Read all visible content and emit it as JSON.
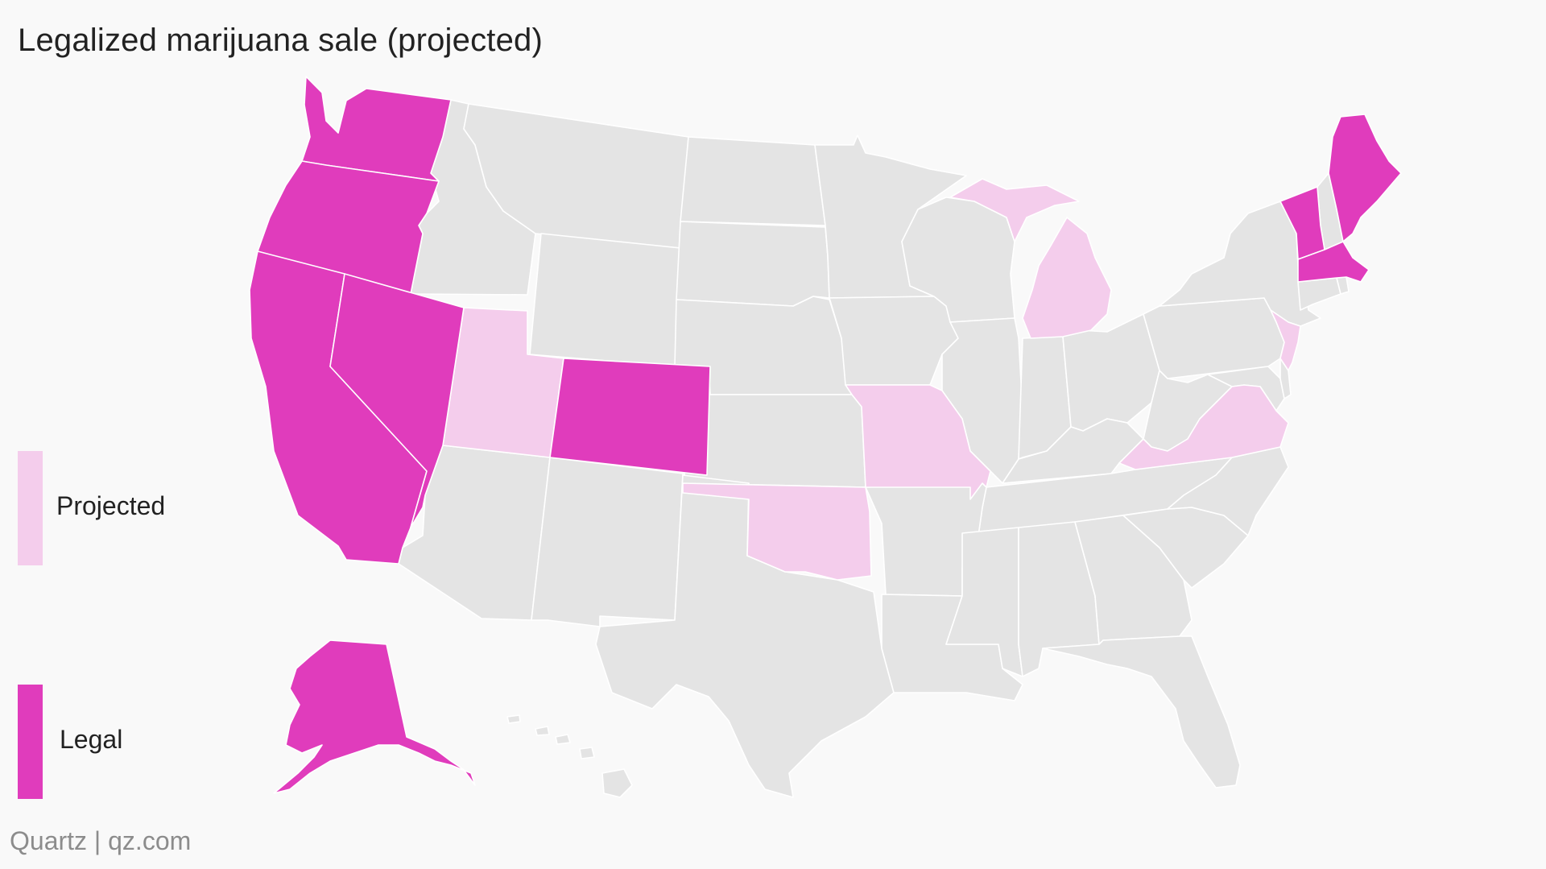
{
  "title": "Legalized marijuana sale (projected)",
  "source": "Quartz | qz.com",
  "colors": {
    "legal": "#e03cbc",
    "projected": "#f4cdec",
    "other": "#e4e4e4",
    "background": "#f9f9f9",
    "border": "#ffffff"
  },
  "legend": {
    "items": [
      {
        "key": "projected",
        "label": "Projected"
      },
      {
        "key": "legal",
        "label": "Legal"
      }
    ]
  },
  "map_data": {
    "legal": [
      "Washington",
      "Oregon",
      "California",
      "Nevada",
      "Colorado",
      "Alaska",
      "Maine",
      "Vermont",
      "Massachusetts"
    ],
    "projected": [
      "Utah",
      "Oklahoma",
      "Missouri",
      "Michigan",
      "Virginia",
      "New Jersey"
    ]
  }
}
